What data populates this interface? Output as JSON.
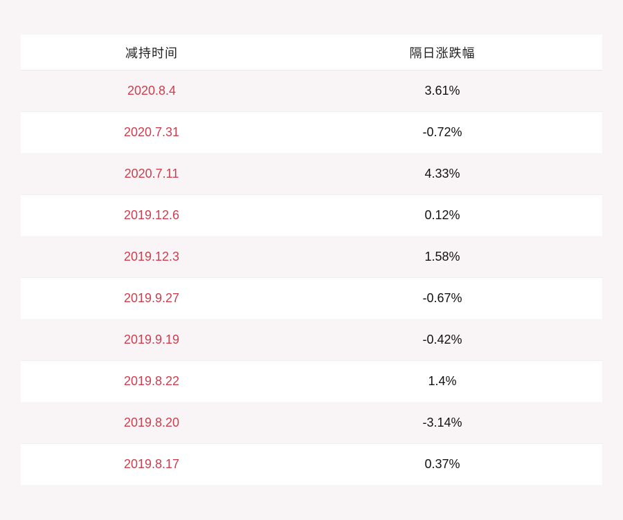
{
  "page": {
    "background_color": "#f9f4f6",
    "date_color": "#cc3e4e",
    "value_color": "#111111",
    "stripe_color": "#f9f4f6",
    "row_color": "#ffffff"
  },
  "table": {
    "columns": [
      {
        "key": "date",
        "label": "减持时间"
      },
      {
        "key": "change",
        "label": "隔日涨跌幅"
      }
    ],
    "rows": [
      {
        "date": "2020.8.4",
        "change": "3.61%"
      },
      {
        "date": "2020.7.31",
        "change": "-0.72%"
      },
      {
        "date": "2020.7.11",
        "change": "4.33%"
      },
      {
        "date": "2019.12.6",
        "change": "0.12%"
      },
      {
        "date": "2019.12.3",
        "change": "1.58%"
      },
      {
        "date": "2019.9.27",
        "change": "-0.67%"
      },
      {
        "date": "2019.9.19",
        "change": "-0.42%"
      },
      {
        "date": "2019.8.22",
        "change": "1.4%"
      },
      {
        "date": "2019.8.20",
        "change": "-3.14%"
      },
      {
        "date": "2019.8.17",
        "change": "0.37%"
      }
    ]
  },
  "chart_data": {
    "type": "table",
    "title": "",
    "columns": [
      "减持时间",
      "隔日涨跌幅"
    ],
    "rows": [
      [
        "2020.8.4",
        "3.61%"
      ],
      [
        "2020.7.31",
        "-0.72%"
      ],
      [
        "2020.7.11",
        "4.33%"
      ],
      [
        "2019.12.6",
        "0.12%"
      ],
      [
        "2019.12.3",
        "1.58%"
      ],
      [
        "2019.9.27",
        "-0.67%"
      ],
      [
        "2019.9.19",
        "-0.42%"
      ],
      [
        "2019.8.22",
        "1.4%"
      ],
      [
        "2019.8.20",
        "-3.14%"
      ],
      [
        "2019.8.17",
        "0.37%"
      ]
    ],
    "change_values_numeric_percent": [
      3.61,
      -0.72,
      4.33,
      0.12,
      1.58,
      -0.67,
      -0.42,
      1.4,
      -3.14,
      0.37
    ]
  }
}
